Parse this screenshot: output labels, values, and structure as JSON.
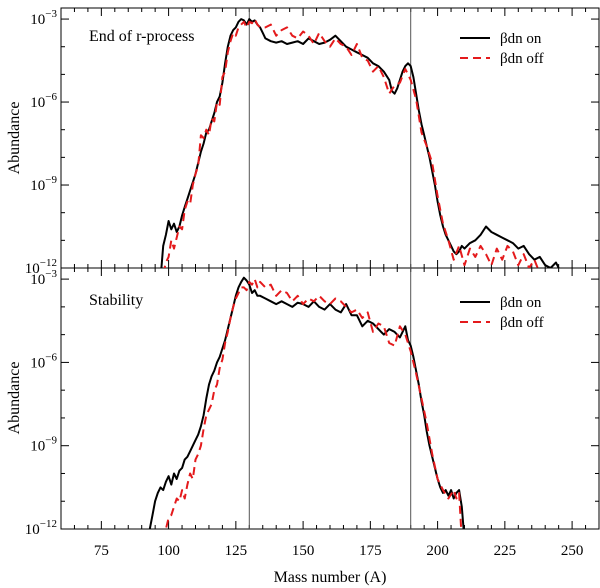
{
  "chart_data": {
    "type": "line",
    "shared_x": {
      "label": "Mass number (A)",
      "lim": [
        60,
        260
      ],
      "ticks": [
        75,
        100,
        125,
        150,
        175,
        200,
        225,
        250
      ],
      "tick_labels": [
        "75",
        "100",
        "125",
        "150",
        "175",
        "200",
        "225",
        "250"
      ]
    },
    "reference_lines_A": [
      130,
      190
    ],
    "panels": [
      {
        "title": "End of r-process",
        "ylabel": "Abundance",
        "yscale": "log",
        "ylim_exp": [
          -12,
          -2.6
        ],
        "yticks": [
          {
            "exp": -3,
            "base": "10",
            "sup": "−3"
          },
          {
            "exp": -6,
            "base": "10",
            "sup": "−6"
          },
          {
            "exp": -9,
            "base": "10",
            "sup": "−9"
          },
          {
            "exp": -12,
            "base": "10",
            "sup": "−12"
          }
        ],
        "legend": {
          "placement": "top-right"
        },
        "series": [
          {
            "name": "βdn on",
            "color": "#000000",
            "style": "solid",
            "x": [
              97,
              98,
              99,
              100,
              101,
              102,
              103,
              104,
              105,
              106,
              107,
              108,
              109,
              110,
              111,
              112,
              113,
              114,
              115,
              116,
              117,
              118,
              119,
              120,
              121,
              122,
              123,
              124,
              125,
              126,
              127,
              128,
              129,
              130,
              131,
              132,
              133,
              134,
              135,
              136,
              138,
              140,
              142,
              144,
              146,
              148,
              150,
              152,
              154,
              156,
              158,
              160,
              162,
              164,
              166,
              168,
              170,
              172,
              174,
              176,
              178,
              180,
              182,
              183,
              184,
              185,
              186,
              187,
              188,
              189,
              190,
              191,
              192,
              193,
              194,
              195,
              196,
              197,
              198,
              199,
              200,
              201,
              202,
              203,
              204,
              205,
              206,
              207,
              208,
              209,
              210,
              212,
              214,
              216,
              218,
              220,
              222,
              224,
              226,
              228,
              230,
              232,
              234,
              236,
              238,
              240,
              242,
              244,
              246,
              248,
              250,
              251
            ],
            "y": [
              -12.4,
              -11.2,
              -10.8,
              -10.3,
              -10.6,
              -10.4,
              -10.7,
              -10.5,
              -10.1,
              -9.8,
              -9.5,
              -9.2,
              -8.9,
              -8.6,
              -8.2,
              -7.8,
              -7.5,
              -7.1,
              -7.0,
              -6.7,
              -6.4,
              -6.0,
              -5.8,
              -5.3,
              -4.6,
              -4.0,
              -3.6,
              -3.4,
              -3.3,
              -3.1,
              -3.0,
              -3.05,
              -3.2,
              -3.0,
              -3.1,
              -3.05,
              -3.2,
              -3.3,
              -3.5,
              -3.7,
              -3.8,
              -3.85,
              -3.8,
              -3.9,
              -3.85,
              -3.8,
              -3.9,
              -3.7,
              -3.8,
              -3.9,
              -3.85,
              -3.75,
              -3.6,
              -3.8,
              -4.0,
              -4.1,
              -4.2,
              -4.3,
              -4.4,
              -4.6,
              -4.7,
              -4.9,
              -5.2,
              -5.6,
              -5.7,
              -5.5,
              -5.2,
              -4.9,
              -4.7,
              -4.6,
              -4.7,
              -5.1,
              -5.7,
              -6.3,
              -6.8,
              -7.2,
              -7.6,
              -8.0,
              -8.5,
              -9.0,
              -9.6,
              -10.1,
              -10.5,
              -10.8,
              -11.0,
              -11.2,
              -11.4,
              -11.5,
              -11.4,
              -11.2,
              -11.3,
              -11.1,
              -11.0,
              -10.8,
              -10.5,
              -10.7,
              -10.8,
              -10.9,
              -11.0,
              -11.1,
              -11.3,
              -11.2,
              -11.5,
              -11.7,
              -11.6,
              -11.9,
              -12.0,
              -11.8,
              -12.2,
              -12.1,
              -12.3,
              -12.5
            ]
          },
          {
            "name": "βdn off",
            "color": "#e41a1c",
            "style": "dashed",
            "x": [
              98,
              99,
              100,
              101,
              102,
              103,
              104,
              105,
              106,
              107,
              108,
              109,
              110,
              111,
              112,
              113,
              114,
              115,
              116,
              117,
              118,
              119,
              120,
              121,
              122,
              123,
              124,
              125,
              126,
              127,
              128,
              129,
              130,
              131,
              132,
              133,
              134,
              136,
              138,
              140,
              142,
              144,
              146,
              148,
              150,
              152,
              154,
              156,
              158,
              160,
              162,
              164,
              166,
              168,
              170,
              172,
              174,
              176,
              178,
              180,
              182,
              184,
              186,
              188,
              190,
              192,
              194,
              196,
              198,
              200,
              202,
              204,
              206,
              208,
              210,
              212,
              214,
              216,
              218,
              220,
              222,
              224,
              226,
              228,
              230,
              232,
              234,
              236,
              238,
              240
            ],
            "y": [
              -12.2,
              -11.8,
              -11.6,
              -11.0,
              -11.3,
              -10.9,
              -10.5,
              -10.6,
              -9.9,
              -9.6,
              -9.7,
              -9.0,
              -8.6,
              -8.3,
              -7.2,
              -7.3,
              -7.0,
              -7.2,
              -6.6,
              -6.7,
              -6.0,
              -6.1,
              -5.1,
              -4.9,
              -4.2,
              -3.8,
              -3.5,
              -3.6,
              -3.3,
              -3.2,
              -3.1,
              -3.3,
              -3.1,
              -3.15,
              -3.0,
              -3.2,
              -3.3,
              -3.3,
              -3.2,
              -3.6,
              -3.4,
              -3.3,
              -3.6,
              -3.7,
              -3.45,
              -3.6,
              -3.9,
              -3.5,
              -3.8,
              -4.0,
              -3.7,
              -3.9,
              -4.0,
              -4.3,
              -3.9,
              -4.4,
              -4.5,
              -4.9,
              -4.7,
              -5.1,
              -5.7,
              -5.4,
              -5.3,
              -4.8,
              -5.2,
              -5.9,
              -7.1,
              -7.6,
              -8.2,
              -9.4,
              -10.4,
              -11.0,
              -11.7,
              -11.2,
              -11.9,
              -11.3,
              -11.6,
              -11.2,
              -11.5,
              -11.9,
              -11.3,
              -11.7,
              -11.2,
              -11.4,
              -11.9,
              -11.5,
              -12.0,
              -11.7,
              -12.2,
              -12.4
            ]
          }
        ]
      },
      {
        "title": "Stability",
        "ylabel": "Abundance",
        "yscale": "log",
        "ylim_exp": [
          -12,
          -2.6
        ],
        "yticks": [
          {
            "exp": -3,
            "base": "10",
            "sup": "−3"
          },
          {
            "exp": -6,
            "base": "10",
            "sup": "−6"
          },
          {
            "exp": -9,
            "base": "10",
            "sup": "−9"
          },
          {
            "exp": -12,
            "base": "10",
            "sup": "−12"
          }
        ],
        "legend": {
          "placement": "top-right"
        },
        "series": [
          {
            "name": "βdn on",
            "color": "#000000",
            "style": "solid",
            "x": [
              92,
              93,
              94,
              95,
              96,
              97,
              98,
              99,
              100,
              101,
              102,
              103,
              104,
              105,
              106,
              107,
              108,
              109,
              110,
              111,
              112,
              113,
              114,
              115,
              116,
              117,
              118,
              119,
              120,
              121,
              122,
              123,
              124,
              125,
              126,
              127,
              128,
              129,
              130,
              131,
              132,
              133,
              134,
              136,
              138,
              140,
              142,
              144,
              146,
              148,
              150,
              152,
              154,
              156,
              158,
              160,
              162,
              164,
              166,
              168,
              170,
              172,
              174,
              176,
              178,
              180,
              182,
              184,
              186,
              188,
              189,
              190,
              191,
              192,
              193,
              194,
              195,
              196,
              197,
              198,
              199,
              200,
              201,
              202,
              203,
              204,
              205,
              206,
              207,
              208,
              209,
              210
            ],
            "y": [
              -12.4,
              -12.0,
              -11.5,
              -11.0,
              -10.7,
              -10.5,
              -10.6,
              -10.3,
              -10.1,
              -10.4,
              -10.0,
              -10.2,
              -9.9,
              -9.8,
              -9.5,
              -9.4,
              -9.2,
              -9.0,
              -8.8,
              -8.6,
              -8.3,
              -7.9,
              -7.3,
              -6.8,
              -6.5,
              -6.3,
              -6.0,
              -5.8,
              -5.5,
              -5.2,
              -4.8,
              -4.4,
              -4.0,
              -3.6,
              -3.3,
              -3.1,
              -2.95,
              -3.05,
              -3.2,
              -3.5,
              -3.4,
              -3.6,
              -3.6,
              -3.7,
              -3.8,
              -3.9,
              -3.8,
              -3.9,
              -4.0,
              -3.85,
              -3.9,
              -4.0,
              -3.8,
              -4.0,
              -4.1,
              -3.9,
              -4.1,
              -4.2,
              -3.9,
              -4.3,
              -4.3,
              -4.7,
              -4.5,
              -4.6,
              -4.8,
              -5.0,
              -4.8,
              -4.9,
              -5.1,
              -4.7,
              -5.2,
              -5.4,
              -5.8,
              -6.3,
              -6.8,
              -7.4,
              -7.9,
              -8.5,
              -9.0,
              -9.4,
              -9.8,
              -10.2,
              -10.5,
              -10.7,
              -10.6,
              -10.8,
              -10.6,
              -10.9,
              -10.7,
              -10.6,
              -11.2,
              -12.4
            ]
          },
          {
            "name": "βdn off",
            "color": "#e41a1c",
            "style": "dashed",
            "x": [
              98,
              99,
              100,
              101,
              102,
              103,
              104,
              105,
              106,
              107,
              108,
              109,
              110,
              111,
              112,
              113,
              114,
              115,
              116,
              117,
              118,
              119,
              120,
              121,
              122,
              123,
              124,
              125,
              126,
              127,
              128,
              129,
              130,
              131,
              132,
              133,
              134,
              136,
              138,
              140,
              142,
              144,
              146,
              148,
              150,
              152,
              154,
              156,
              158,
              160,
              162,
              164,
              166,
              168,
              170,
              172,
              174,
              176,
              178,
              180,
              182,
              184,
              186,
              188,
              190,
              192,
              194,
              196,
              198,
              200,
              202,
              204,
              206,
              207,
              208,
              209
            ],
            "y": [
              -12.4,
              -12.0,
              -11.6,
              -11.5,
              -11.2,
              -10.9,
              -11.0,
              -10.6,
              -10.9,
              -10.4,
              -10.0,
              -10.2,
              -9.5,
              -9.3,
              -9.0,
              -8.4,
              -7.9,
              -7.7,
              -7.5,
              -7.0,
              -6.8,
              -6.2,
              -5.9,
              -5.3,
              -4.9,
              -4.4,
              -4.0,
              -3.7,
              -3.5,
              -3.3,
              -3.3,
              -3.4,
              -3.1,
              -3.2,
              -3.0,
              -3.3,
              -3.1,
              -3.3,
              -3.2,
              -3.6,
              -3.4,
              -3.5,
              -3.8,
              -3.6,
              -3.9,
              -3.7,
              -3.8,
              -3.6,
              -3.8,
              -3.9,
              -3.7,
              -3.8,
              -4.0,
              -4.2,
              -4.1,
              -4.4,
              -4.2,
              -4.9,
              -4.6,
              -4.7,
              -5.3,
              -5.4,
              -4.7,
              -5.0,
              -5.6,
              -6.4,
              -7.3,
              -8.2,
              -9.3,
              -10.2,
              -10.6,
              -10.9,
              -10.6,
              -10.9,
              -10.7,
              -12.4
            ]
          }
        ]
      }
    ]
  },
  "page": {
    "figure_name": "Abundance vs mass number figure"
  }
}
